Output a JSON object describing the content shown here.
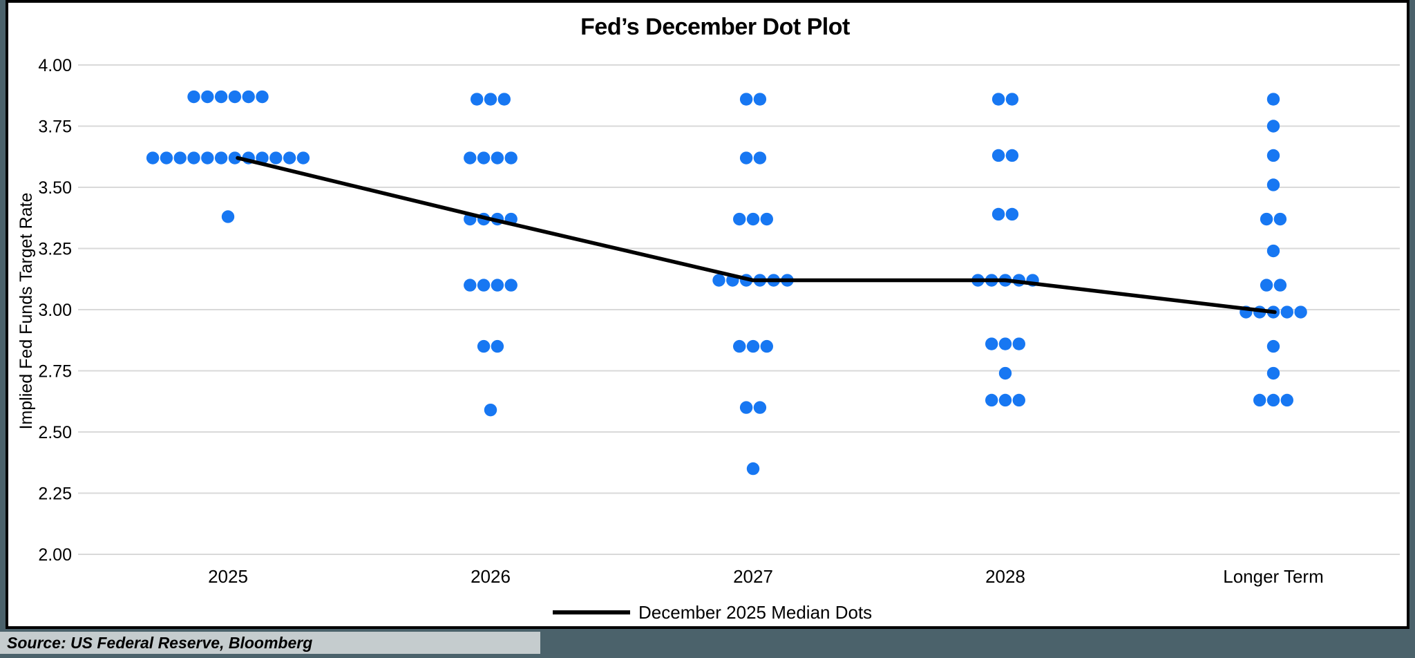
{
  "title": "Fed’s December Dot Plot",
  "y_axis": {
    "label": "Implied Fed Funds Target Rate",
    "tick_labels": [
      "4.00",
      "3.75",
      "3.50",
      "3.25",
      "3.00",
      "2.75",
      "2.50",
      "2.25",
      "2.00"
    ]
  },
  "x_axis": {
    "category_labels": [
      "2025",
      "2026",
      "2027",
      "2028",
      "Longer Term"
    ]
  },
  "legend": {
    "label": "December 2025 Median Dots"
  },
  "source": "Source: US Federal Reserve, Bloomberg",
  "colors": {
    "dot": "#1777F2",
    "median_line": "#000000",
    "gridline": "#D9D9D9",
    "frame_background": "#4B626B",
    "panel_background": "#FFFFFF",
    "caption_background": "#C5CCCE",
    "text": "#000000"
  },
  "chart_data": {
    "type": "scatter",
    "title": "Fed’s December Dot Plot",
    "xlabel": "",
    "ylabel": "Implied Fed Funds Target Rate",
    "ylim": [
      2.0,
      4.0
    ],
    "y_tick_step": 0.25,
    "grid": "horizontal",
    "legend_position": "bottom-center",
    "categories": [
      "2025",
      "2026",
      "2027",
      "2028",
      "Longer Term"
    ],
    "series": [
      {
        "category": "2025",
        "dots": [
          {
            "rate": 3.87,
            "count": 6
          },
          {
            "rate": 3.62,
            "count": 12
          },
          {
            "rate": 3.38,
            "count": 1
          }
        ],
        "total_dots": 19
      },
      {
        "category": "2026",
        "dots": [
          {
            "rate": 3.86,
            "count": 3
          },
          {
            "rate": 3.62,
            "count": 4
          },
          {
            "rate": 3.37,
            "count": 4
          },
          {
            "rate": 3.1,
            "count": 4
          },
          {
            "rate": 2.85,
            "count": 2
          },
          {
            "rate": 2.59,
            "count": 1
          }
        ],
        "total_dots": 18
      },
      {
        "category": "2027",
        "dots": [
          {
            "rate": 3.86,
            "count": 2
          },
          {
            "rate": 3.62,
            "count": 2
          },
          {
            "rate": 3.37,
            "count": 3
          },
          {
            "rate": 3.12,
            "count": 6
          },
          {
            "rate": 2.85,
            "count": 3
          },
          {
            "rate": 2.6,
            "count": 2
          },
          {
            "rate": 2.35,
            "count": 1
          }
        ],
        "total_dots": 19
      },
      {
        "category": "2028",
        "dots": [
          {
            "rate": 3.86,
            "count": 2
          },
          {
            "rate": 3.63,
            "count": 2
          },
          {
            "rate": 3.39,
            "count": 2
          },
          {
            "rate": 3.12,
            "count": 5
          },
          {
            "rate": 2.86,
            "count": 3
          },
          {
            "rate": 2.74,
            "count": 1
          },
          {
            "rate": 2.63,
            "count": 3
          }
        ],
        "total_dots": 18
      },
      {
        "category": "Longer Term",
        "dots": [
          {
            "rate": 3.86,
            "count": 1
          },
          {
            "rate": 3.75,
            "count": 1
          },
          {
            "rate": 3.63,
            "count": 1
          },
          {
            "rate": 3.51,
            "count": 1
          },
          {
            "rate": 3.37,
            "count": 2
          },
          {
            "rate": 3.24,
            "count": 1
          },
          {
            "rate": 3.1,
            "count": 2
          },
          {
            "rate": 2.99,
            "count": 5
          },
          {
            "rate": 2.85,
            "count": 1
          },
          {
            "rate": 2.74,
            "count": 1
          },
          {
            "rate": 2.63,
            "count": 3
          }
        ],
        "total_dots": 19
      }
    ],
    "median_line": {
      "name": "December 2025 Median Dots",
      "categories": [
        "2025",
        "2026",
        "2027",
        "2028",
        "Longer Term"
      ],
      "values": [
        3.62,
        3.37,
        3.12,
        3.12,
        2.99
      ]
    }
  }
}
